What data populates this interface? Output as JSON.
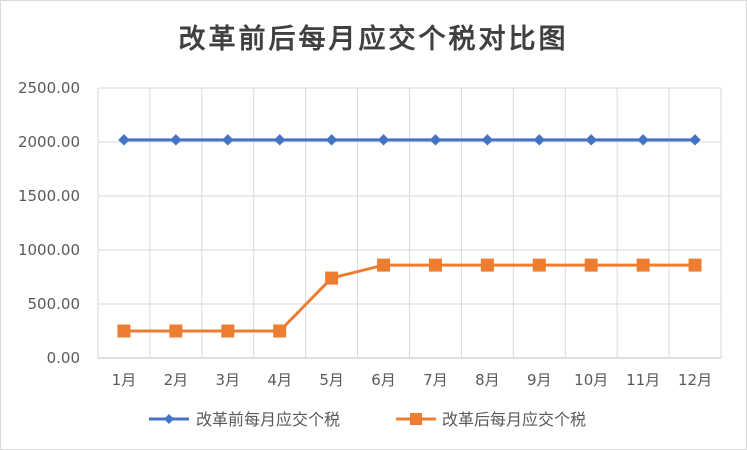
{
  "chart_data": {
    "type": "line",
    "title": "改革前后每月应交个税对比图",
    "xlabel": "",
    "ylabel": "",
    "categories": [
      "1月",
      "2月",
      "3月",
      "4月",
      "5月",
      "6月",
      "7月",
      "8月",
      "9月",
      "10月",
      "11月",
      "12月"
    ],
    "ylim": [
      0,
      2500
    ],
    "yticks": [
      "0.00",
      "500.00",
      "1000.00",
      "1500.00",
      "2000.00",
      "2500.00"
    ],
    "grid": true,
    "legend_position": "bottom",
    "series": [
      {
        "name": "改革前每月应交个税",
        "color": "#4472c4",
        "marker": "diamond",
        "values": [
          2020,
          2020,
          2020,
          2020,
          2020,
          2020,
          2020,
          2020,
          2020,
          2020,
          2020,
          2020
        ]
      },
      {
        "name": "改革后每月应交个税",
        "color": "#ed7d31",
        "marker": "square",
        "values": [
          250,
          250,
          250,
          250,
          740,
          860,
          860,
          860,
          860,
          860,
          860,
          860
        ]
      }
    ]
  }
}
